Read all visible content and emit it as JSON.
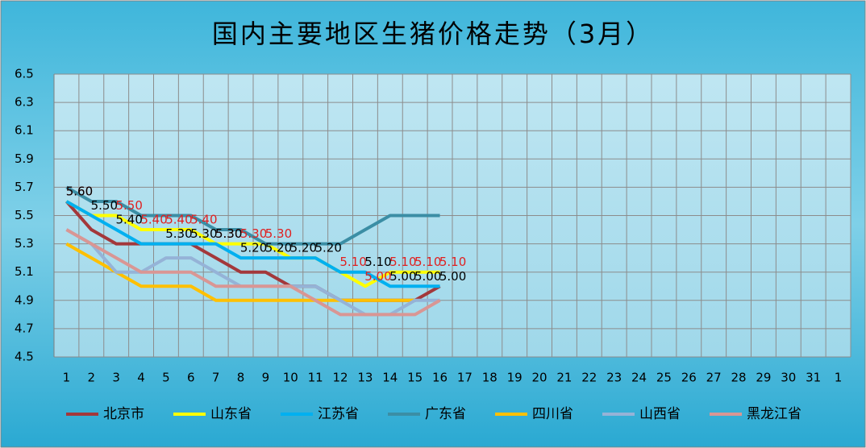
{
  "chart_data": {
    "type": "line",
    "title": "国内主要地区生猪价格走势（3月）",
    "categories": [
      "1",
      "2",
      "3",
      "4",
      "5",
      "6",
      "7",
      "8",
      "9",
      "10",
      "11",
      "12",
      "13",
      "14",
      "15",
      "16",
      "17",
      "18",
      "19",
      "20",
      "21",
      "22",
      "23",
      "24",
      "25",
      "26",
      "27",
      "28",
      "29",
      "30",
      "31",
      "1"
    ],
    "ylim": [
      4.5,
      6.5
    ],
    "yticks": [
      4.5,
      4.7,
      4.9,
      5.1,
      5.3,
      5.5,
      5.7,
      5.9,
      6.1,
      6.3,
      6.5
    ],
    "grid": true,
    "legend": "bottom",
    "series": [
      {
        "name": "北京市",
        "color": "#a3383b",
        "values": [
          5.6,
          5.4,
          5.3,
          5.3,
          5.3,
          5.3,
          5.2,
          5.1,
          5.1,
          5.0,
          5.0,
          4.9,
          4.9,
          4.9,
          4.9,
          5.0,
          null,
          null,
          null,
          null,
          null,
          null,
          null,
          null,
          null,
          null,
          null,
          null,
          null,
          null,
          null,
          null
        ]
      },
      {
        "name": "山东省",
        "color": "#ffff00",
        "label_color": "#e02020",
        "values": [
          5.6,
          5.5,
          5.5,
          5.4,
          5.4,
          5.4,
          5.3,
          5.3,
          5.3,
          5.2,
          5.2,
          5.1,
          5.0,
          5.1,
          5.1,
          5.1,
          null,
          null,
          null,
          null,
          null,
          null,
          null,
          null,
          null,
          null,
          null,
          null,
          null,
          null,
          null,
          null
        ],
        "value_labels": [
          "5.60",
          null,
          "5.50",
          "5.40",
          "5.40",
          "5.40",
          "5.30",
          "5.30",
          "5.30",
          null,
          null,
          "5.10",
          "5.00",
          "5.10",
          "5.10",
          "5.10",
          null,
          null,
          null,
          null,
          null,
          null,
          null,
          null,
          null,
          null,
          null,
          null,
          null,
          null,
          null,
          null
        ]
      },
      {
        "name": "江苏省",
        "color": "#00b0f0",
        "label_color": "#000000",
        "values": [
          5.6,
          5.5,
          5.4,
          5.3,
          5.3,
          5.3,
          5.3,
          5.2,
          5.2,
          5.2,
          5.2,
          5.1,
          5.1,
          5.0,
          5.0,
          5.0,
          null,
          null,
          null,
          null,
          null,
          null,
          null,
          null,
          null,
          null,
          null,
          null,
          null,
          null,
          null,
          null
        ],
        "value_labels": [
          "5.60",
          "5.50",
          "5.40",
          null,
          "5.30",
          "5.30",
          "5.30",
          "5.20",
          "5.20",
          "5.20",
          "5.20",
          null,
          "5.10",
          "5.00",
          "5.00",
          "5.00",
          null,
          null,
          null,
          null,
          null,
          null,
          null,
          null,
          null,
          null,
          null,
          null,
          null,
          null,
          null,
          null
        ]
      },
      {
        "name": "广东省",
        "color": "#3b8ea5",
        "values": [
          5.7,
          5.6,
          5.6,
          5.5,
          5.5,
          5.5,
          5.4,
          5.4,
          5.3,
          5.3,
          5.3,
          5.3,
          5.4,
          5.5,
          5.5,
          5.5,
          null,
          null,
          null,
          null,
          null,
          null,
          null,
          null,
          null,
          null,
          null,
          null,
          null,
          null,
          null,
          null
        ]
      },
      {
        "name": "四川省",
        "color": "#ffc000",
        "values": [
          5.3,
          5.2,
          5.1,
          5.0,
          5.0,
          5.0,
          4.9,
          4.9,
          4.9,
          4.9,
          4.9,
          4.9,
          4.9,
          4.9,
          4.9,
          null,
          null,
          null,
          null,
          null,
          null,
          null,
          null,
          null,
          null,
          null,
          null,
          null,
          null,
          null,
          null,
          null
        ]
      },
      {
        "name": "山西省",
        "color": "#95b3d7",
        "values": [
          5.4,
          5.3,
          5.1,
          5.1,
          5.2,
          5.2,
          5.1,
          5.0,
          5.0,
          5.0,
          5.0,
          4.9,
          4.8,
          4.8,
          4.9,
          4.9,
          null,
          null,
          null,
          null,
          null,
          null,
          null,
          null,
          null,
          null,
          null,
          null,
          null,
          null,
          null,
          null
        ]
      },
      {
        "name": "黑龙江省",
        "color": "#d99694",
        "values": [
          5.4,
          5.3,
          5.2,
          5.1,
          5.1,
          5.1,
          5.0,
          5.0,
          5.0,
          5.0,
          4.9,
          4.8,
          4.8,
          4.8,
          4.8,
          4.9,
          null,
          null,
          null,
          null,
          null,
          null,
          null,
          null,
          null,
          null,
          null,
          null,
          null,
          null,
          null,
          null
        ]
      }
    ]
  }
}
